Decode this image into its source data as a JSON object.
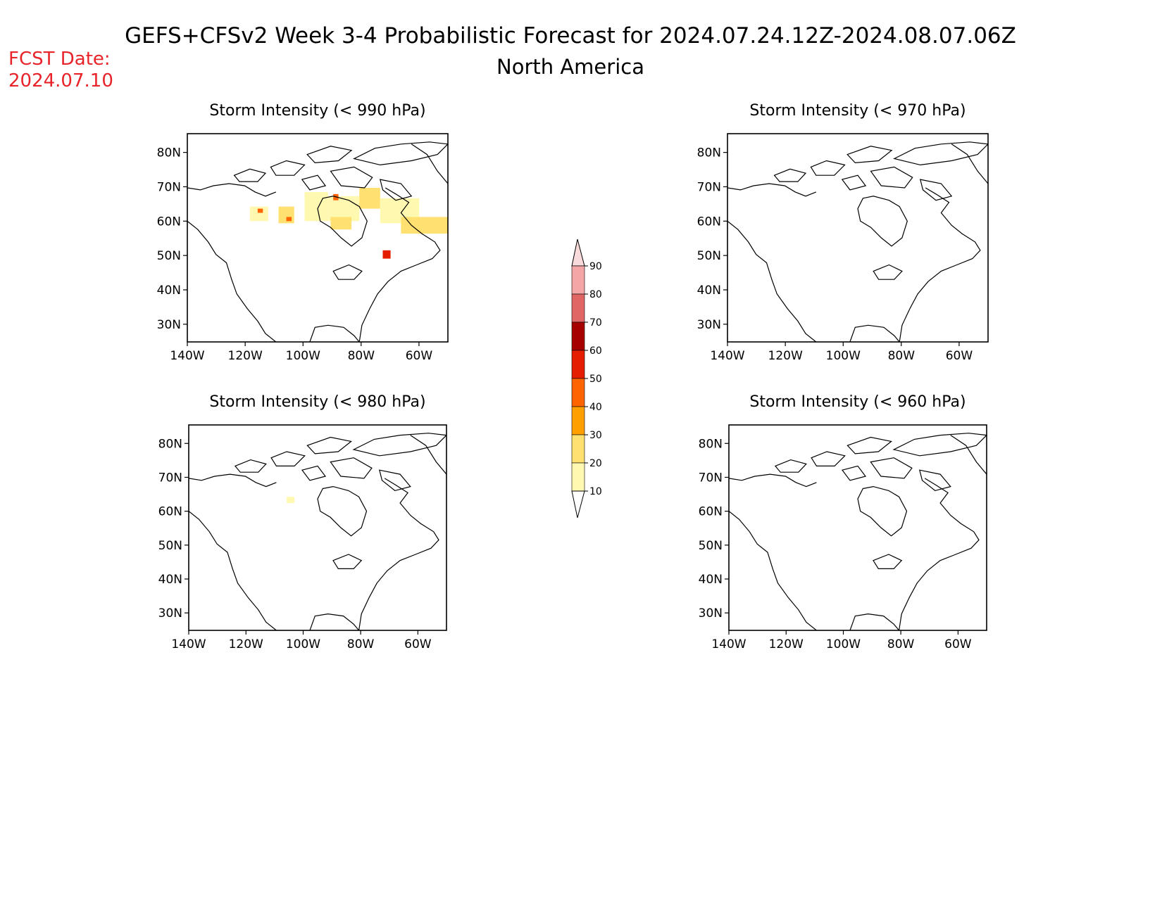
{
  "header": {
    "title_line1": "GEFS+CFSv2 Week 3-4 Probabilistic Forecast for 2024.07.24.12Z-2024.08.07.06Z",
    "title_line2": "North America",
    "fcst_label": "FCST Date:",
    "fcst_date": "2024.07.10",
    "fcst_color": "#e8232a"
  },
  "axes": {
    "lat_ticks": [
      "80N",
      "70N",
      "60N",
      "50N",
      "40N",
      "30N"
    ],
    "lon_ticks": [
      "140W",
      "120W",
      "100W",
      "80W",
      "60W"
    ]
  },
  "panels": [
    {
      "title": "Storm Intensity (< 990 hPa)"
    },
    {
      "title": "Storm Intensity (< 970 hPa)"
    },
    {
      "title": "Storm Intensity (< 980 hPa)"
    },
    {
      "title": "Storm Intensity (< 960 hPa)"
    }
  ],
  "colorbar": {
    "labels": [
      "90",
      "80",
      "70",
      "60",
      "50",
      "40",
      "30",
      "20",
      "10"
    ],
    "colors": [
      "#f9dada",
      "#f4a6a6",
      "#e06666",
      "#a60000",
      "#e61e00",
      "#ff6400",
      "#ffa000",
      "#ffe070",
      "#fff8b0"
    ]
  }
}
